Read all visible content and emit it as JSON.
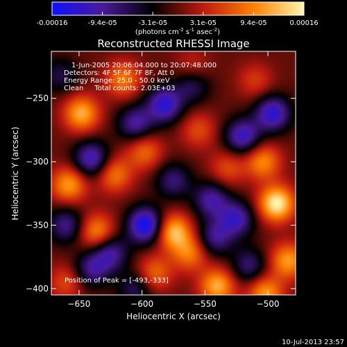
{
  "colorbar": {
    "tick_labels": [
      "-0.00016",
      "-9.4e-05",
      "-3.1e-05",
      "3.1e-05",
      "9.4e-05",
      "0.00016"
    ],
    "unit_prefix": "(photons cm",
    "unit_sup1": "-2",
    "unit_mid": " s",
    "unit_sup2": "-1",
    "unit_suffix": " asec",
    "unit_sup3": "-2",
    "unit_close": ")",
    "range": [
      -0.00016,
      0.00016
    ],
    "colors": [
      "#1010ff",
      "#4a1a9a",
      "#000000",
      "#c01a10",
      "#ff8000",
      "#fff8b0"
    ]
  },
  "chart_data": {
    "type": "heatmap",
    "title": "Reconstructed RHESSI Image",
    "xlabel": "Heliocentric X (arcsec)",
    "ylabel": "Heliocentric Y (arcsec)",
    "xlim": [
      -672,
      -478
    ],
    "ylim": [
      -405,
      -213
    ],
    "x_ticks": [
      -650,
      -600,
      -550,
      -500
    ],
    "y_ticks": [
      -400,
      -350,
      -300,
      -250
    ],
    "annotations": [
      "1-Jun-2005 20:06:04.000 to 20:07:48.000",
      "Detectors: 4F 5F 6F 7F 8F, Att 0",
      "Energy Range: 25.0 - 50.0 keV",
      "Clean     Total counts: 2.03E+03"
    ],
    "peak_label": "Position of Peak = [-493,-333]",
    "peak": [
      -493,
      -333
    ],
    "sources": [
      {
        "x": -493,
        "y": -333,
        "value": 0.00016
      },
      {
        "x": -504,
        "y": -300,
        "value": 0.0001
      },
      {
        "x": -484,
        "y": -378,
        "value": 0.00011
      },
      {
        "x": -502,
        "y": -404,
        "value": 0.00011
      },
      {
        "x": -540,
        "y": -398,
        "value": 0.00012
      },
      {
        "x": -562,
        "y": -372,
        "value": 9e-05
      },
      {
        "x": -575,
        "y": -355,
        "value": 0.00013
      },
      {
        "x": -590,
        "y": -388,
        "value": 8e-05
      },
      {
        "x": -615,
        "y": -235,
        "value": 9e-05
      },
      {
        "x": -648,
        "y": -262,
        "value": 0.00012
      },
      {
        "x": -658,
        "y": -318,
        "value": 0.00011
      },
      {
        "x": -622,
        "y": -310,
        "value": 9e-05
      },
      {
        "x": -636,
        "y": -355,
        "value": 0.0001
      },
      {
        "x": -598,
        "y": -292,
        "value": 8e-05
      },
      {
        "x": -555,
        "y": -275,
        "value": 6e-05
      },
      {
        "x": -532,
        "y": -305,
        "value": 6e-05
      },
      {
        "x": -510,
        "y": -236,
        "value": 5e-05
      },
      {
        "x": -560,
        "y": -225,
        "value": 4e-05
      },
      {
        "x": -660,
        "y": -395,
        "value": 6e-05
      },
      {
        "x": -597,
        "y": -350,
        "value": -0.00016
      },
      {
        "x": -582,
        "y": -255,
        "value": -0.00013
      },
      {
        "x": -605,
        "y": -270,
        "value": -0.0001
      },
      {
        "x": -640,
        "y": -298,
        "value": -0.00012
      },
      {
        "x": -496,
        "y": -262,
        "value": -0.00013
      },
      {
        "x": -520,
        "y": -280,
        "value": -0.00012
      },
      {
        "x": -525,
        "y": -345,
        "value": -0.00011
      },
      {
        "x": -545,
        "y": -330,
        "value": -0.0001
      },
      {
        "x": -660,
        "y": -350,
        "value": -9e-05
      },
      {
        "x": -625,
        "y": -372,
        "value": -0.0001
      },
      {
        "x": -542,
        "y": -360,
        "value": -9e-05
      },
      {
        "x": -515,
        "y": -382,
        "value": -8e-05
      },
      {
        "x": -640,
        "y": -385,
        "value": -9e-05
      },
      {
        "x": -575,
        "y": -315,
        "value": -8e-05
      },
      {
        "x": -560,
        "y": -240,
        "value": -7e-05
      },
      {
        "x": -665,
        "y": -232,
        "value": -6e-05
      },
      {
        "x": -605,
        "y": -400,
        "value": -7e-05
      }
    ]
  },
  "timestamp": "10-Jul-2013 23:57"
}
